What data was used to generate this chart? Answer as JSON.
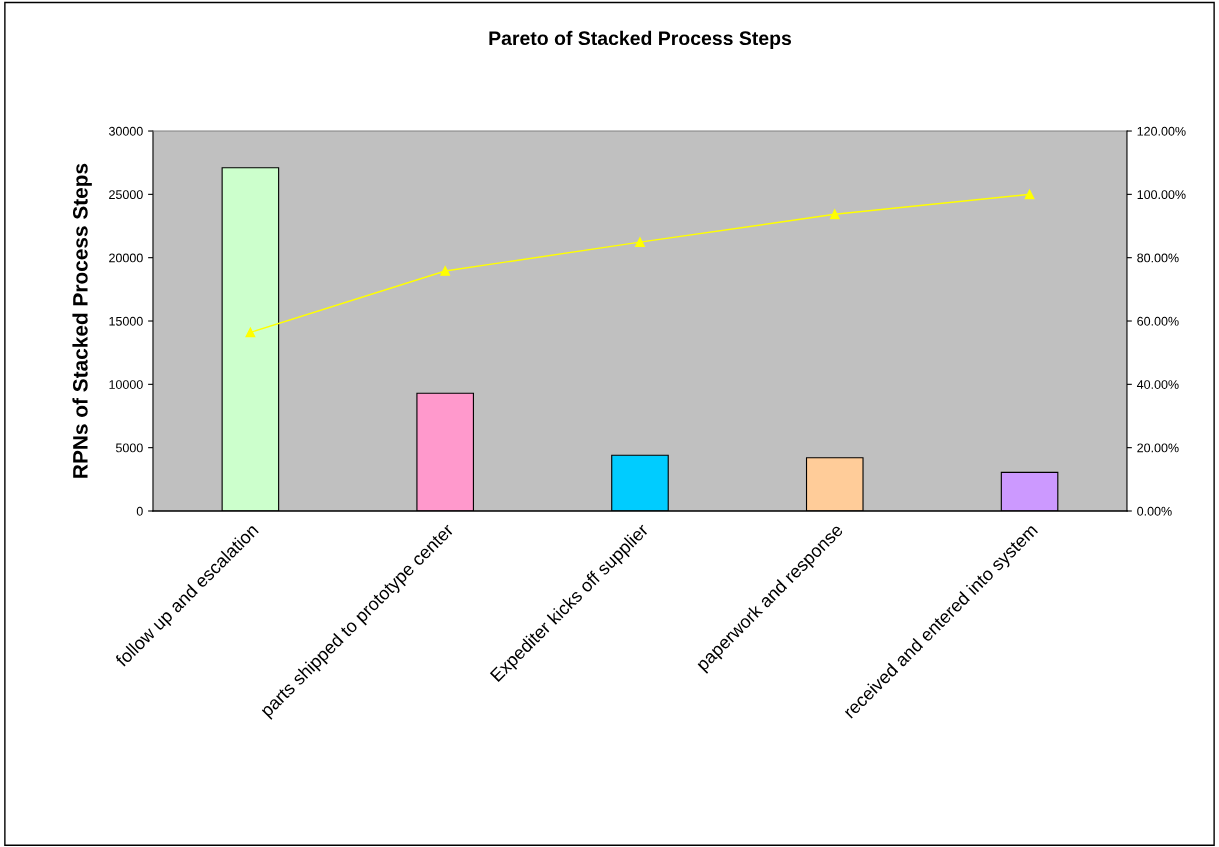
{
  "chart_data": {
    "type": "bar",
    "title": "Pareto of Stacked Process Steps",
    "ylabel": "RPNs of Stacked Process Steps",
    "categories": [
      "follow up and escalation",
      "parts shipped to prototype center",
      "Expediter kicks off supplier",
      "paperwork and response",
      "received and entered into system"
    ],
    "series": [
      {
        "colors": [
          "#ccffcc",
          "#ff99cc",
          "#00ccff",
          "#ffcc99",
          "#cc99ff"
        ],
        "values": [
          27100,
          9300,
          4400,
          4200,
          3050
        ]
      },
      {
        "type": "line",
        "axis": "y2",
        "color": "#ffff00",
        "marker": "triangle",
        "values": [
          56.4,
          75.8,
          84.9,
          93.7,
          100
        ]
      }
    ],
    "ylim": [
      0,
      30000
    ],
    "yticks": [
      0,
      5000,
      10000,
      15000,
      20000,
      25000,
      30000
    ],
    "y2lim": [
      0,
      120
    ],
    "y2ticks": [
      {
        "value": 0,
        "label": "0.00%"
      },
      {
        "value": 20,
        "label": "20.00%"
      },
      {
        "value": 40,
        "label": "40.00%"
      },
      {
        "value": 60,
        "label": "60.00%"
      },
      {
        "value": 80,
        "label": "80.00%"
      },
      {
        "value": 100,
        "label": "100.00%"
      },
      {
        "value": 120,
        "label": "120.00%"
      }
    ],
    "grid": false,
    "legend": false
  }
}
